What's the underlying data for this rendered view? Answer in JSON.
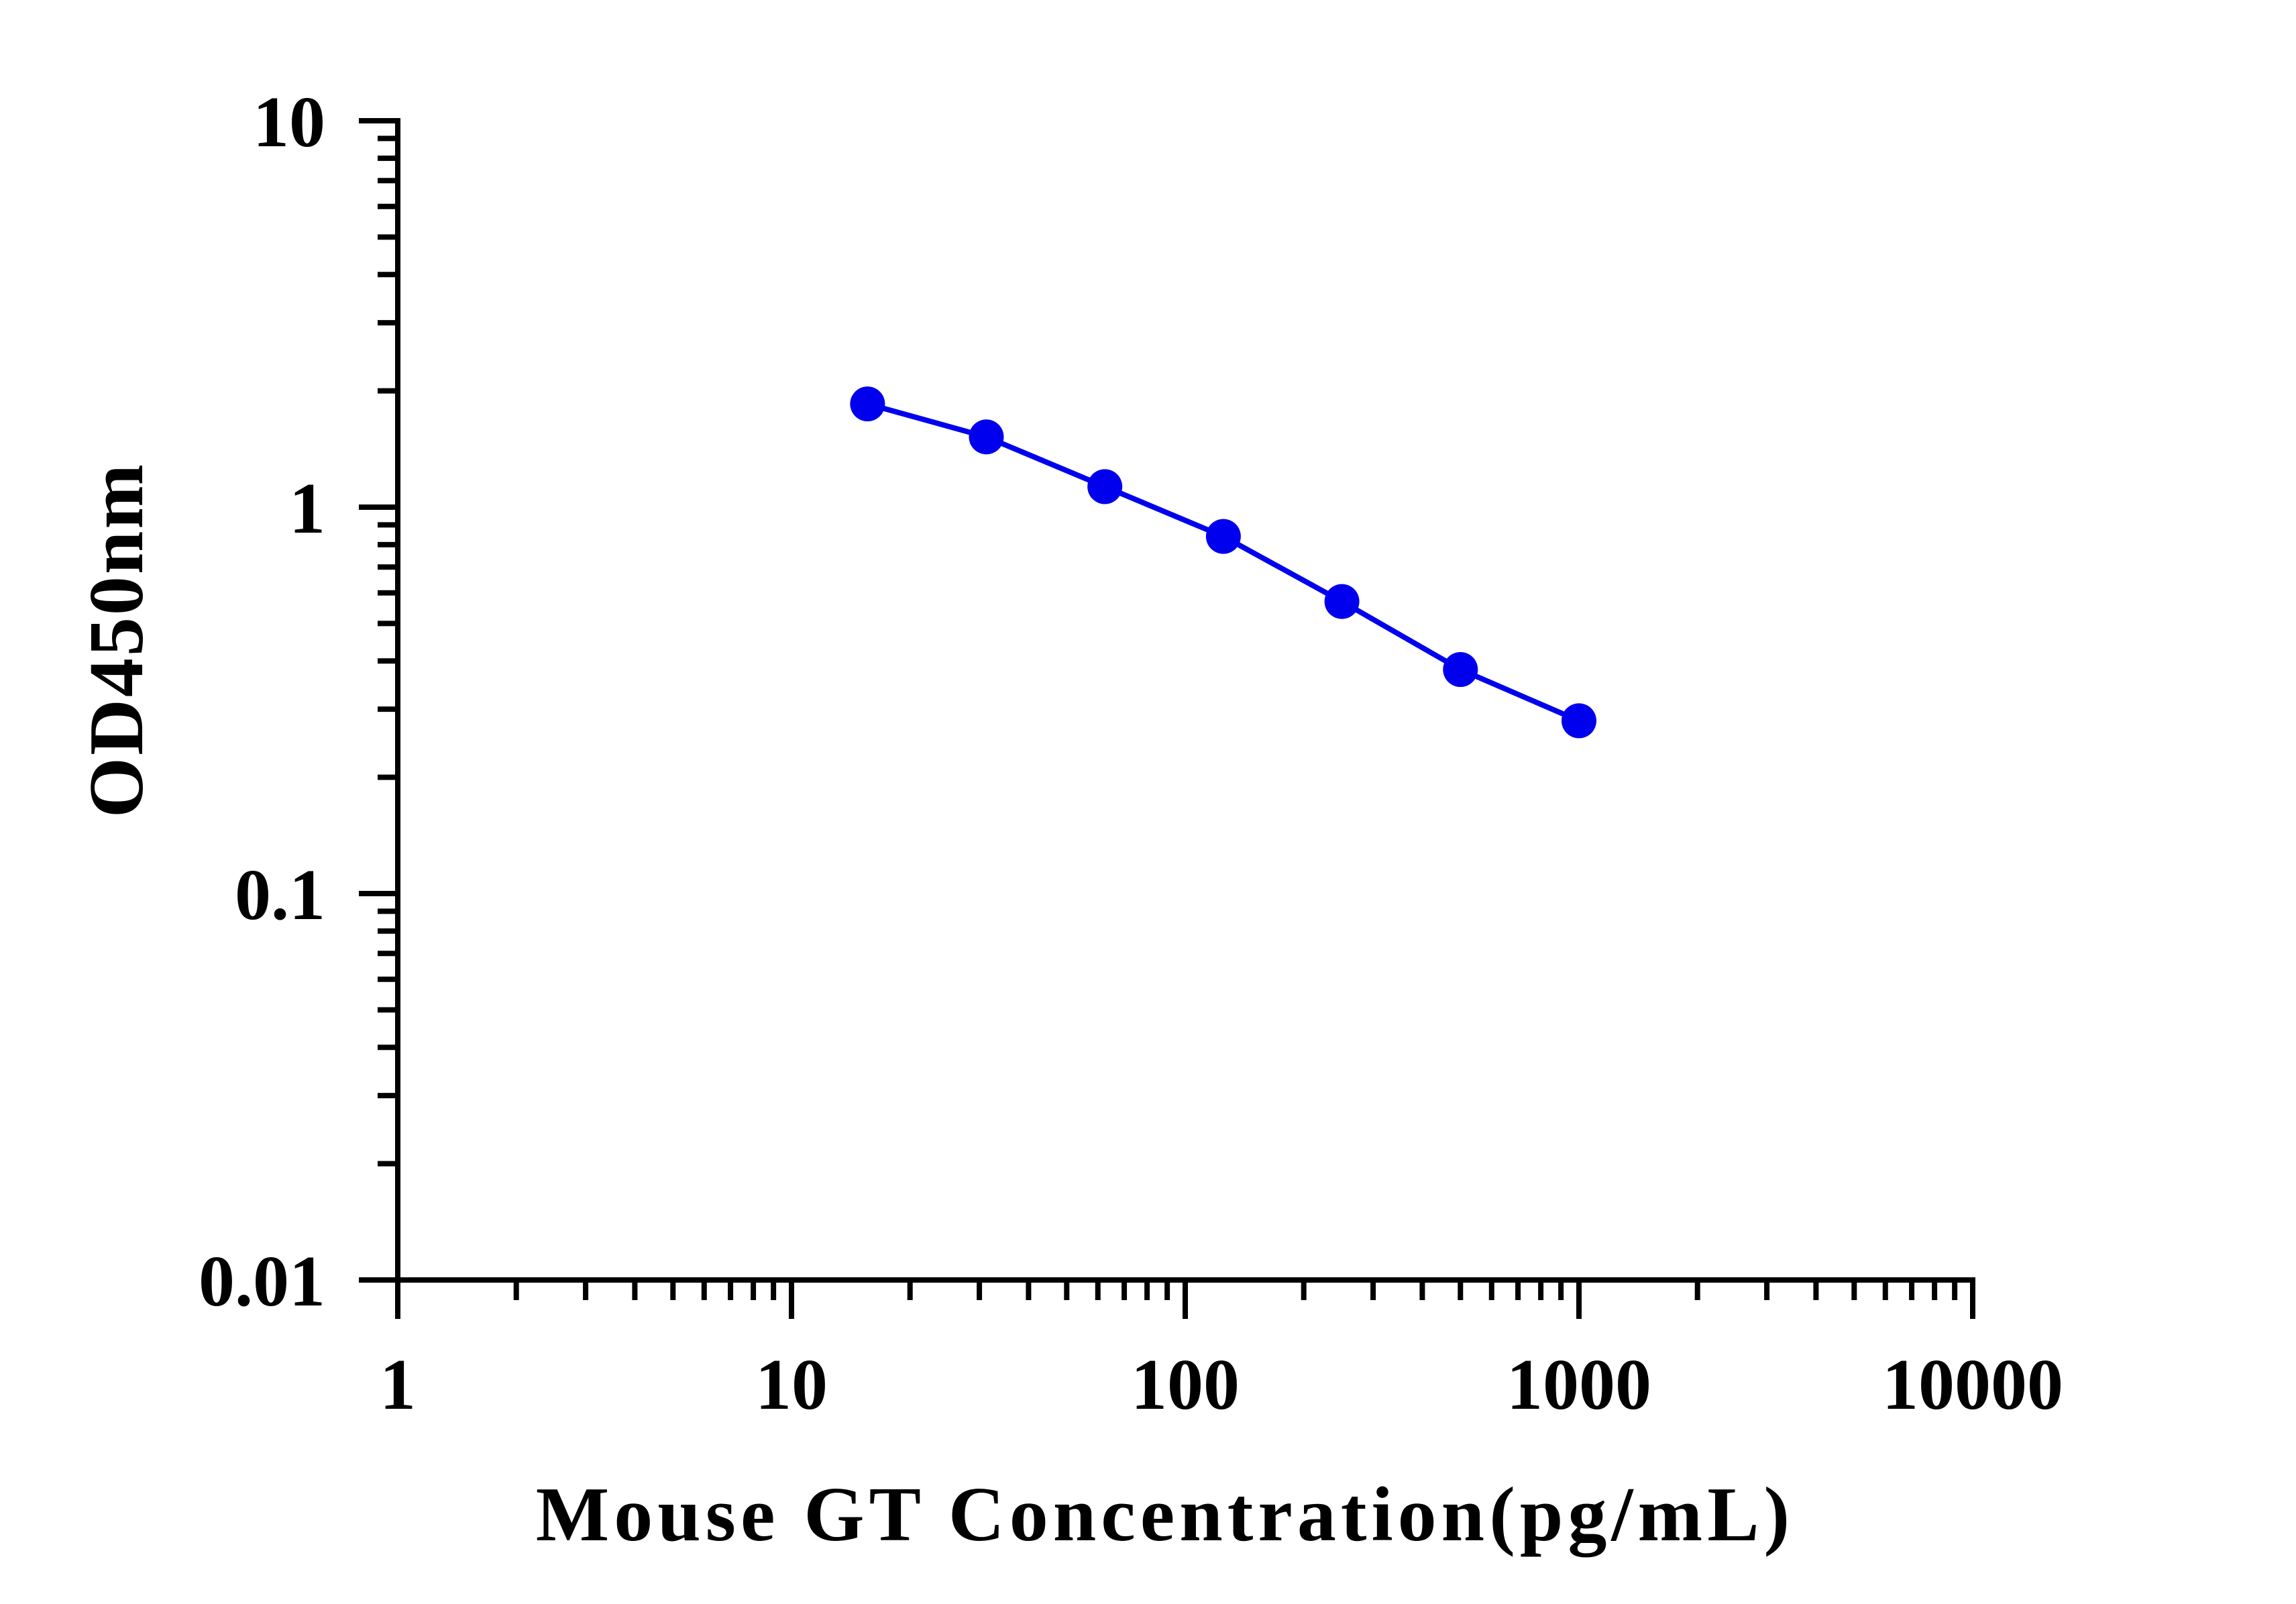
{
  "chart_data": {
    "type": "line",
    "title": "",
    "xlabel": "Mouse GT Concentration(pg/mL)",
    "ylabel": "OD450nm",
    "x_scale": "log",
    "y_scale": "log",
    "xlim": [
      1,
      10000
    ],
    "ylim": [
      0.01,
      10
    ],
    "x_ticks": [
      {
        "value": 1,
        "label": "1"
      },
      {
        "value": 10,
        "label": "10"
      },
      {
        "value": 100,
        "label": "100"
      },
      {
        "value": 1000,
        "label": "1000"
      },
      {
        "value": 10000,
        "label": "10000"
      }
    ],
    "y_ticks": [
      {
        "value": 0.01,
        "label": "0.01"
      },
      {
        "value": 0.1,
        "label": "0.1"
      },
      {
        "value": 1,
        "label": "1"
      },
      {
        "value": 10,
        "label": "10"
      }
    ],
    "grid": false,
    "legend": "none",
    "series": [
      {
        "color": "#0000ee",
        "marker": "circle",
        "x": [
          15.6,
          31.25,
          62.5,
          125,
          250,
          500,
          1000
        ],
        "y": [
          1.85,
          1.52,
          1.13,
          0.84,
          0.57,
          0.38,
          0.28
        ]
      }
    ]
  }
}
